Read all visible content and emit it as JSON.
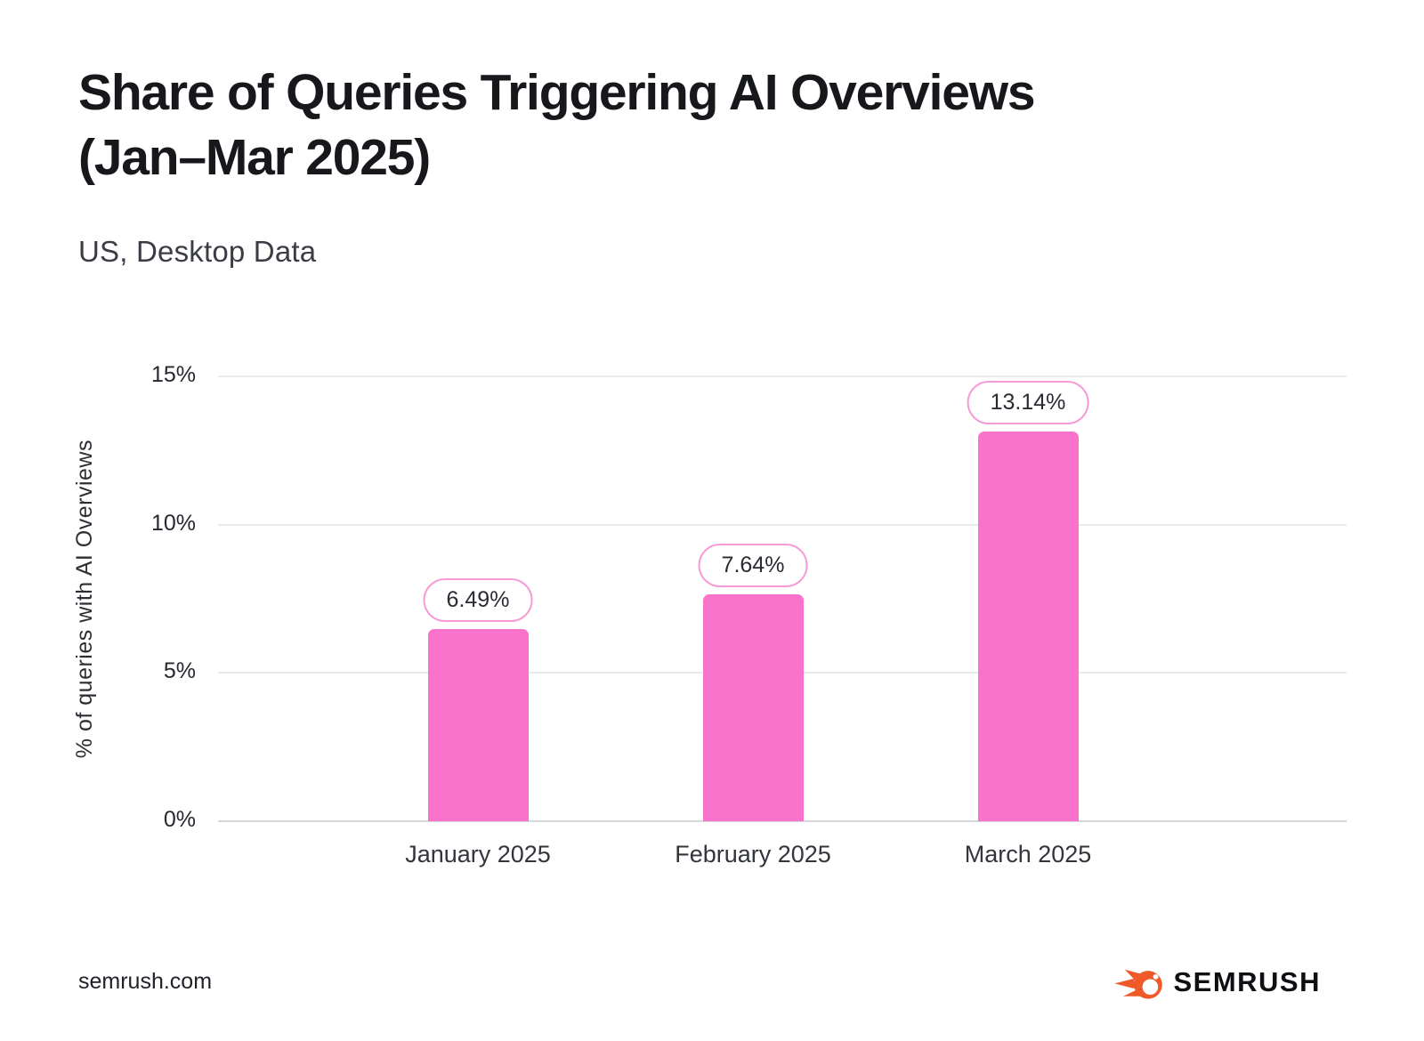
{
  "header": {
    "title_line1": "Share of Queries Triggering AI Overviews",
    "title_line2": "(Jan–Mar 2025)",
    "subtitle": "US, Desktop Data"
  },
  "chart_data": {
    "type": "bar",
    "title": "Share of Queries Triggering AI Overviews (Jan–Mar 2025)",
    "subtitle": "US, Desktop Data",
    "categories": [
      "January 2025",
      "February 2025",
      "March 2025"
    ],
    "values": [
      6.49,
      7.64,
      13.14
    ],
    "value_labels": [
      "6.49%",
      "7.64%",
      "13.14%"
    ],
    "xlabel": "",
    "ylabel": "% of queries with AI Overviews",
    "ylim": [
      0,
      15
    ],
    "yticks": [
      0,
      5,
      10,
      15
    ],
    "ytick_labels": [
      "0%",
      "5%",
      "10%",
      "15%"
    ],
    "grid": "horizontal",
    "legend": "none",
    "bar_color": "#fa73cb",
    "pill_border_color": "#f79ad6",
    "gridline_color": "#e9eaee"
  },
  "footer": {
    "source": "semrush.com",
    "brand": "SEMRUSH",
    "brand_color": "#f05a28"
  }
}
